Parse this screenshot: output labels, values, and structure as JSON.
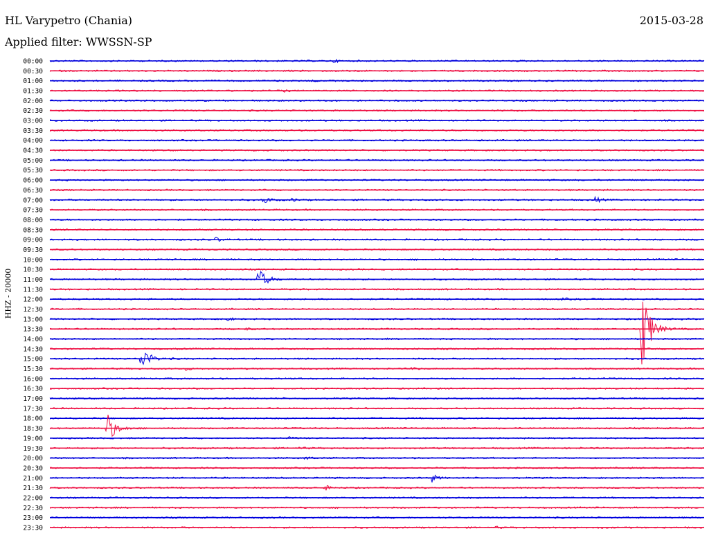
{
  "header": {
    "station": "HL Varypetro (Chania)",
    "date": "2015-03-28",
    "filter": "Applied filter: WWSSN-SP"
  },
  "axis": {
    "ylabel": "HHZ - 20000"
  },
  "colors": {
    "blue": "#0000dd",
    "red": "#ee1144"
  },
  "chart_data": {
    "type": "line",
    "title": "HL Varypetro (Chania)",
    "subtitle": "Applied filter: WWSSN-SP",
    "ylabel": "HHZ - 20000",
    "row_interval_minutes": 30,
    "tick_labels": [
      "00:00",
      "00:30",
      "01:00",
      "01:30",
      "02:00",
      "02:30",
      "03:00",
      "03:30",
      "04:00",
      "04:30",
      "05:00",
      "05:30",
      "06:00",
      "06:30",
      "07:00",
      "07:30",
      "08:00",
      "08:30",
      "09:00",
      "09:30",
      "10:00",
      "10:30",
      "11:00",
      "11:30",
      "12:00",
      "12:30",
      "13:00",
      "13:30",
      "14:00",
      "14:30",
      "15:00",
      "15:30",
      "16:00",
      "16:30",
      "17:00",
      "17:30",
      "18:00",
      "18:30",
      "19:00",
      "19:30",
      "20:00",
      "20:30",
      "21:00",
      "21:30",
      "22:00",
      "22:30",
      "23:00",
      "23:30"
    ],
    "trace_colors_alternating": [
      "blue",
      "red"
    ],
    "events": [
      {
        "row": 0,
        "minute": 13.0,
        "amplitude": 0.35
      },
      {
        "row": 1,
        "minute": 13.6,
        "amplitude": 0.22
      },
      {
        "row": 2,
        "minute": 12.0,
        "amplitude": 0.25
      },
      {
        "row": 3,
        "minute": 10.7,
        "amplitude": 0.3
      },
      {
        "row": 14,
        "minute": 9.8,
        "amplitude": 1.4
      },
      {
        "row": 14,
        "minute": 11.1,
        "amplitude": 0.6
      },
      {
        "row": 14,
        "minute": 25.0,
        "amplitude": 0.9
      },
      {
        "row": 18,
        "minute": 7.6,
        "amplitude": 0.7
      },
      {
        "row": 22,
        "minute": 9.5,
        "amplitude": 3.5
      },
      {
        "row": 24,
        "minute": 23.5,
        "amplitude": 0.3
      },
      {
        "row": 26,
        "minute": 8.1,
        "amplitude": 0.5
      },
      {
        "row": 27,
        "minute": 9.0,
        "amplitude": 0.25
      },
      {
        "row": 30,
        "minute": 4.2,
        "amplitude": 3.5
      },
      {
        "row": 31,
        "minute": 6.2,
        "amplitude": 0.4
      },
      {
        "row": 31,
        "minute": 16.6,
        "amplitude": 0.4
      },
      {
        "row": 37,
        "minute": 2.6,
        "amplitude": 4.5
      },
      {
        "row": 38,
        "minute": 11.0,
        "amplitude": 0.3
      },
      {
        "row": 39,
        "minute": 11.4,
        "amplitude": 0.3
      },
      {
        "row": 40,
        "minute": 11.7,
        "amplitude": 0.5
      },
      {
        "row": 42,
        "minute": 17.5,
        "amplitude": 1.2
      },
      {
        "row": 43,
        "minute": 12.6,
        "amplitude": 0.7
      },
      {
        "row": 47,
        "minute": 20.4,
        "amplitude": 0.25
      },
      {
        "row": 47,
        "minute": 25.2,
        "amplitude": 0.2
      },
      {
        "row": 27,
        "minute": 27.1,
        "amplitude": 14.0
      }
    ]
  }
}
